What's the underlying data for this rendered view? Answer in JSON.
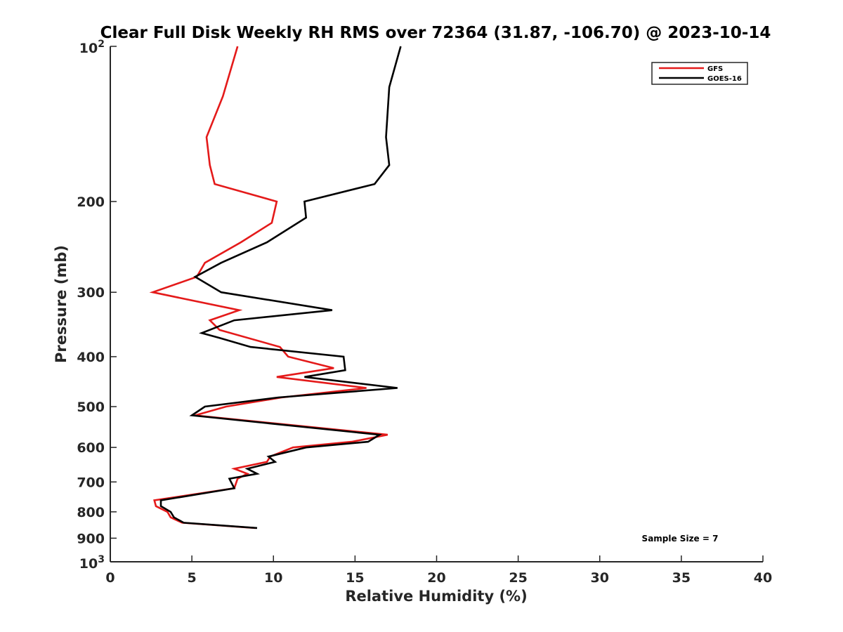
{
  "chart_data": {
    "type": "line",
    "title": "Clear Full Disk Weekly RH RMS over 72364 (31.87, -106.70) @ 2023-10-14",
    "xlabel": "Relative Humidity (%)",
    "ylabel": "Pressure (mb)",
    "xlim": [
      0,
      40
    ],
    "ylim": [
      100,
      1000
    ],
    "y_scale": "log",
    "y_reversed": true,
    "grid": false,
    "legend_position": "top-right",
    "x_ticks": [
      0,
      5,
      10,
      15,
      20,
      25,
      30,
      35,
      40
    ],
    "x_tick_labels": [
      "0",
      "5",
      "10",
      "15",
      "20",
      "25",
      "30",
      "35",
      "40"
    ],
    "y_ticks": [
      200,
      300,
      400,
      500,
      600,
      700,
      800,
      900
    ],
    "y_tick_labels": [
      "200",
      "300",
      "400",
      "500",
      "600",
      "700",
      "800",
      "900"
    ],
    "y_decade_ticks": [
      {
        "value": 100,
        "base": "10",
        "exp": "2"
      },
      {
        "value": 1000,
        "base": "10",
        "exp": "3"
      }
    ],
    "annotation": "Sample Size = 7",
    "series": [
      {
        "name": "GFS",
        "color": "#e41a1a",
        "points": [
          [
            7.8,
            100
          ],
          [
            6.9,
            125
          ],
          [
            5.9,
            150
          ],
          [
            6.1,
            170
          ],
          [
            6.4,
            185
          ],
          [
            10.2,
            200
          ],
          [
            9.9,
            220
          ],
          [
            8.0,
            240
          ],
          [
            5.8,
            263
          ],
          [
            5.3,
            280
          ],
          [
            2.6,
            300
          ],
          [
            7.9,
            325
          ],
          [
            6.1,
            340
          ],
          [
            6.7,
            355
          ],
          [
            10.4,
            383
          ],
          [
            10.9,
            400
          ],
          [
            13.7,
            421
          ],
          [
            10.2,
            438
          ],
          [
            15.7,
            460
          ],
          [
            10.5,
            480
          ],
          [
            7.1,
            500
          ],
          [
            5.2,
            520
          ],
          [
            17.0,
            567
          ],
          [
            14.8,
            585
          ],
          [
            11.2,
            600
          ],
          [
            9.8,
            625
          ],
          [
            9.6,
            640
          ],
          [
            7.6,
            660
          ],
          [
            8.4,
            675
          ],
          [
            7.8,
            690
          ],
          [
            7.6,
            720
          ],
          [
            2.7,
            760
          ],
          [
            2.8,
            780
          ],
          [
            3.5,
            800
          ],
          [
            3.7,
            820
          ],
          [
            4.4,
            840
          ],
          [
            8.9,
            860
          ]
        ]
      },
      {
        "name": "GOES-16",
        "color": "#000000",
        "points": [
          [
            17.8,
            100
          ],
          [
            17.1,
            120
          ],
          [
            16.9,
            150
          ],
          [
            17.1,
            170
          ],
          [
            16.2,
            185
          ],
          [
            11.9,
            200
          ],
          [
            12.0,
            215
          ],
          [
            9.6,
            240
          ],
          [
            6.8,
            263
          ],
          [
            5.2,
            280
          ],
          [
            6.8,
            300
          ],
          [
            13.6,
            325
          ],
          [
            7.6,
            340
          ],
          [
            5.6,
            360
          ],
          [
            6.7,
            368
          ],
          [
            8.6,
            383
          ],
          [
            14.3,
            400
          ],
          [
            14.4,
            425
          ],
          [
            11.9,
            438
          ],
          [
            17.6,
            460
          ],
          [
            10.3,
            480
          ],
          [
            5.8,
            500
          ],
          [
            5.0,
            520
          ],
          [
            16.5,
            567
          ],
          [
            15.8,
            585
          ],
          [
            12.0,
            600
          ],
          [
            9.7,
            625
          ],
          [
            10.1,
            640
          ],
          [
            8.4,
            660
          ],
          [
            9.0,
            675
          ],
          [
            7.3,
            690
          ],
          [
            7.6,
            720
          ],
          [
            3.1,
            760
          ],
          [
            3.1,
            780
          ],
          [
            3.7,
            800
          ],
          [
            3.9,
            820
          ],
          [
            4.5,
            840
          ],
          [
            9.0,
            860
          ]
        ]
      }
    ]
  }
}
